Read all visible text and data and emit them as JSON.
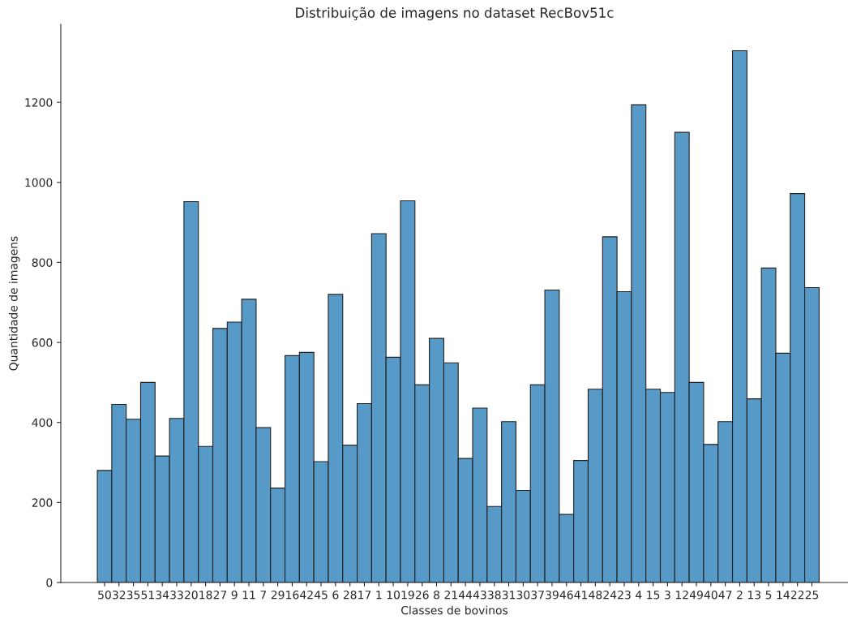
{
  "chart_data": {
    "type": "bar",
    "title": "Distribuição de imagens no dataset RecBov51c",
    "xlabel": "Classes de bovinos",
    "ylabel": "Quantidade de imagens",
    "categories": [
      "50",
      "32",
      "35",
      "51",
      "34",
      "33",
      "20",
      "18",
      "27",
      "9",
      "11",
      "7",
      "29",
      "16",
      "42",
      "45",
      "6",
      "28",
      "17",
      "1",
      "10",
      "19",
      "26",
      "8",
      "21",
      "44",
      "43",
      "38",
      "31",
      "30",
      "37",
      "39",
      "46",
      "41",
      "48",
      "24",
      "23",
      "4",
      "15",
      "3",
      "12",
      "49",
      "40",
      "47",
      "2",
      "13",
      "5",
      "14",
      "22",
      "25"
    ],
    "values": [
      280,
      445,
      408,
      500,
      316,
      410,
      952,
      340,
      635,
      651,
      708,
      387,
      236,
      567,
      575,
      302,
      720,
      343,
      447,
      872,
      563,
      954,
      494,
      610,
      549,
      310,
      436,
      190,
      402,
      230,
      494,
      731,
      170,
      305,
      483,
      864,
      727,
      1194,
      483,
      475,
      1125,
      500,
      345,
      402,
      1329,
      459,
      786,
      573,
      972,
      737
    ],
    "color": "#5799c7",
    "ylim": [
      0,
      1395
    ],
    "yticks": [
      0,
      200,
      400,
      600,
      800,
      1000,
      1200
    ],
    "grid": false
  }
}
